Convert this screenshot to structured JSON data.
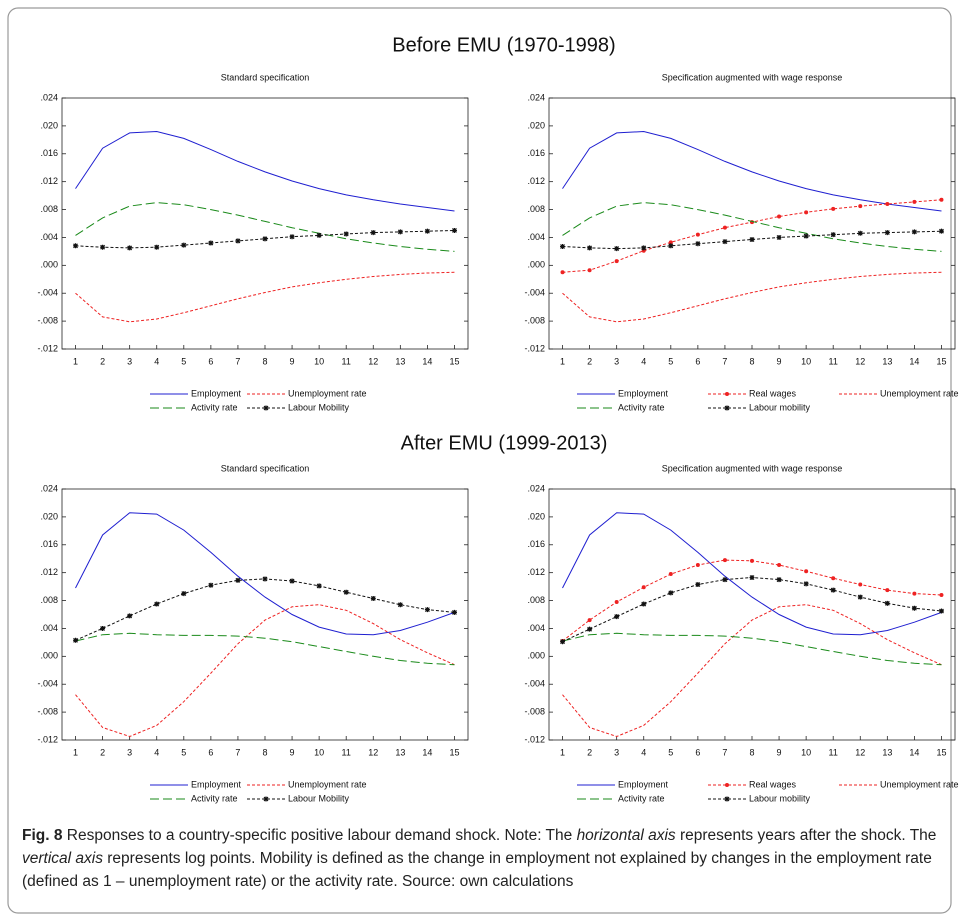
{
  "headings": [
    "Before EMU (1970-1998)",
    "After EMU (1999-2013)"
  ],
  "caption": {
    "label": "Fig. 8",
    "segments": [
      "Responses to a country-specific positive labour demand shock. Note: The ",
      "horizontal axis",
      " represents years after the shock. The ",
      "vertical axis",
      " represents log points. Mobility is defined as the change in employment not explained by changes in the employment rate (defined as 1 – unemployment rate) or the activity rate. Source: own calculations"
    ]
  },
  "chart_data": [
    {
      "type": "line",
      "title": "Standard specification",
      "categories": [
        "1",
        "2",
        "3",
        "4",
        "5",
        "6",
        "7",
        "8",
        "9",
        "10",
        "11",
        "12",
        "13",
        "14",
        "15"
      ],
      "ylim": [
        -0.012,
        0.024
      ],
      "yticks": [
        {
          "value": -0.012,
          "label": "-.012"
        },
        {
          "value": -0.008,
          "label": "-.008"
        },
        {
          "value": -0.004,
          "label": "-.004"
        },
        {
          "value": 0,
          "label": ".000"
        },
        {
          "value": 0.004,
          "label": ".004"
        },
        {
          "value": 0.008,
          "label": ".008"
        },
        {
          "value": 0.012,
          "label": ".012"
        },
        {
          "value": 0.016,
          "label": ".016"
        },
        {
          "value": 0.02,
          "label": ".020"
        },
        {
          "value": 0.024,
          "label": ".024"
        }
      ],
      "series": [
        {
          "name": "Employment",
          "color": "#1f1fd0",
          "dash": "solid",
          "marker": "none",
          "values": [
            0.011,
            0.0168,
            0.019,
            0.0192,
            0.0182,
            0.0166,
            0.0149,
            0.0134,
            0.0121,
            0.011,
            0.0101,
            0.0094,
            0.0088,
            0.0083,
            0.0078
          ]
        },
        {
          "name": "Unemployment rate",
          "color": "#ee2222",
          "dash": "short",
          "marker": "none",
          "values": [
            -0.004,
            -0.0074,
            -0.0081,
            -0.0077,
            -0.0068,
            -0.0058,
            -0.0048,
            -0.0039,
            -0.0031,
            -0.0025,
            -0.002,
            -0.0016,
            -0.0013,
            -0.0011,
            -0.001
          ]
        },
        {
          "name": "Activity rate",
          "color": "#1a8a1a",
          "dash": "long",
          "marker": "none",
          "values": [
            0.0043,
            0.0068,
            0.0085,
            0.009,
            0.0087,
            0.008,
            0.0072,
            0.0063,
            0.0054,
            0.0046,
            0.0038,
            0.0032,
            0.0027,
            0.0023,
            0.002
          ]
        },
        {
          "name": "Labour Mobility",
          "color": "#111111",
          "dash": "short",
          "marker": "star",
          "values": [
            0.0028,
            0.0026,
            0.0025,
            0.0026,
            0.0029,
            0.0032,
            0.0035,
            0.0038,
            0.0041,
            0.0043,
            0.0045,
            0.0047,
            0.0048,
            0.0049,
            0.005
          ]
        }
      ]
    },
    {
      "type": "line",
      "title": "Specification augmented with wage response",
      "categories": [
        "1",
        "2",
        "3",
        "4",
        "5",
        "6",
        "7",
        "8",
        "9",
        "10",
        "11",
        "12",
        "13",
        "14",
        "15"
      ],
      "ylim": [
        -0.012,
        0.024
      ],
      "yticks": [
        {
          "value": -0.012,
          "label": "-.012"
        },
        {
          "value": -0.008,
          "label": "-.008"
        },
        {
          "value": -0.004,
          "label": "-.004"
        },
        {
          "value": 0,
          "label": ".000"
        },
        {
          "value": 0.004,
          "label": ".004"
        },
        {
          "value": 0.008,
          "label": ".008"
        },
        {
          "value": 0.012,
          "label": ".012"
        },
        {
          "value": 0.016,
          "label": ".016"
        },
        {
          "value": 0.02,
          "label": ".020"
        },
        {
          "value": 0.024,
          "label": ".024"
        }
      ],
      "series": [
        {
          "name": "Employment",
          "color": "#1f1fd0",
          "dash": "solid",
          "marker": "none",
          "values": [
            0.011,
            0.0168,
            0.019,
            0.0192,
            0.0182,
            0.0166,
            0.0149,
            0.0134,
            0.0121,
            0.011,
            0.0101,
            0.0094,
            0.0088,
            0.0083,
            0.0078
          ]
        },
        {
          "name": "Real wages",
          "color": "#ee2222",
          "dash": "short",
          "marker": "dot",
          "values": [
            -0.001,
            -0.0007,
            0.0006,
            0.0021,
            0.0033,
            0.0044,
            0.0054,
            0.0062,
            0.007,
            0.0076,
            0.0081,
            0.0085,
            0.0088,
            0.0091,
            0.0094
          ]
        },
        {
          "name": "Unemployment rate",
          "color": "#ee2222",
          "dash": "short",
          "marker": "none",
          "values": [
            -0.004,
            -0.0074,
            -0.0081,
            -0.0077,
            -0.0068,
            -0.0058,
            -0.0048,
            -0.0039,
            -0.0031,
            -0.0025,
            -0.002,
            -0.0016,
            -0.0013,
            -0.0011,
            -0.001
          ]
        },
        {
          "name": "Activity rate",
          "color": "#1a8a1a",
          "dash": "long",
          "marker": "none",
          "values": [
            0.0043,
            0.0068,
            0.0085,
            0.009,
            0.0087,
            0.008,
            0.0072,
            0.0063,
            0.0054,
            0.0046,
            0.0038,
            0.0032,
            0.0027,
            0.0023,
            0.002
          ]
        },
        {
          "name": "Labour mobility",
          "color": "#111111",
          "dash": "short",
          "marker": "star",
          "values": [
            0.0027,
            0.0025,
            0.0024,
            0.0025,
            0.0028,
            0.0031,
            0.0034,
            0.0037,
            0.004,
            0.0042,
            0.0044,
            0.0046,
            0.0047,
            0.0048,
            0.0049
          ]
        }
      ]
    },
    {
      "type": "line",
      "title": "Standard specification",
      "categories": [
        "1",
        "2",
        "3",
        "4",
        "5",
        "6",
        "7",
        "8",
        "9",
        "10",
        "11",
        "12",
        "13",
        "14",
        "15"
      ],
      "ylim": [
        -0.012,
        0.024
      ],
      "yticks": [
        {
          "value": -0.012,
          "label": "-.012"
        },
        {
          "value": -0.008,
          "label": "-.008"
        },
        {
          "value": -0.004,
          "label": "-.004"
        },
        {
          "value": 0,
          "label": ".000"
        },
        {
          "value": 0.004,
          "label": ".004"
        },
        {
          "value": 0.008,
          "label": ".008"
        },
        {
          "value": 0.012,
          "label": ".012"
        },
        {
          "value": 0.016,
          "label": ".016"
        },
        {
          "value": 0.02,
          "label": ".020"
        },
        {
          "value": 0.024,
          "label": ".024"
        }
      ],
      "series": [
        {
          "name": "Employment",
          "color": "#1f1fd0",
          "dash": "solid",
          "marker": "none",
          "values": [
            0.0098,
            0.0174,
            0.0206,
            0.0204,
            0.0181,
            0.0149,
            0.0115,
            0.0085,
            0.006,
            0.0042,
            0.0032,
            0.0031,
            0.0037,
            0.0049,
            0.0063
          ]
        },
        {
          "name": "Unemployment rate",
          "color": "#ee2222",
          "dash": "short",
          "marker": "none",
          "values": [
            -0.0055,
            -0.0102,
            -0.0115,
            -0.0099,
            -0.0065,
            -0.0024,
            0.0018,
            0.0052,
            0.0071,
            0.0074,
            0.0066,
            0.0047,
            0.0024,
            0.0005,
            -0.0012
          ]
        },
        {
          "name": "Activity rate",
          "color": "#1a8a1a",
          "dash": "long",
          "marker": "none",
          "values": [
            0.0022,
            0.0031,
            0.0033,
            0.0031,
            0.003,
            0.003,
            0.0029,
            0.0026,
            0.0021,
            0.0014,
            0.0007,
            0,
            -0.0006,
            -0.001,
            -0.0012
          ]
        },
        {
          "name": "Labour Mobility",
          "color": "#111111",
          "dash": "short",
          "marker": "star",
          "values": [
            0.0023,
            0.004,
            0.0058,
            0.0075,
            0.009,
            0.0102,
            0.0109,
            0.0111,
            0.0108,
            0.0101,
            0.0092,
            0.0083,
            0.0074,
            0.0067,
            0.0063
          ]
        }
      ]
    },
    {
      "type": "line",
      "title": "Specification augmented with wage response",
      "categories": [
        "1",
        "2",
        "3",
        "4",
        "5",
        "6",
        "7",
        "8",
        "9",
        "10",
        "11",
        "12",
        "13",
        "14",
        "15"
      ],
      "ylim": [
        -0.012,
        0.024
      ],
      "yticks": [
        {
          "value": -0.012,
          "label": "-.012"
        },
        {
          "value": -0.008,
          "label": "-.008"
        },
        {
          "value": -0.004,
          "label": "-.004"
        },
        {
          "value": 0,
          "label": ".000"
        },
        {
          "value": 0.004,
          "label": ".004"
        },
        {
          "value": 0.008,
          "label": ".008"
        },
        {
          "value": 0.012,
          "label": ".012"
        },
        {
          "value": 0.016,
          "label": ".016"
        },
        {
          "value": 0.02,
          "label": ".020"
        },
        {
          "value": 0.024,
          "label": ".024"
        }
      ],
      "series": [
        {
          "name": "Employment",
          "color": "#1f1fd0",
          "dash": "solid",
          "marker": "none",
          "values": [
            0.0098,
            0.0174,
            0.0206,
            0.0204,
            0.0181,
            0.0149,
            0.0115,
            0.0085,
            0.006,
            0.0042,
            0.0032,
            0.0031,
            0.0037,
            0.0049,
            0.0063
          ]
        },
        {
          "name": "Real wages",
          "color": "#ee2222",
          "dash": "short",
          "marker": "dot",
          "values": [
            0.0022,
            0.0052,
            0.0078,
            0.0099,
            0.0118,
            0.0131,
            0.0138,
            0.0137,
            0.0131,
            0.0122,
            0.0112,
            0.0103,
            0.0095,
            0.009,
            0.0088
          ]
        },
        {
          "name": "Unemployment rate",
          "color": "#ee2222",
          "dash": "short",
          "marker": "none",
          "values": [
            -0.0055,
            -0.0102,
            -0.0115,
            -0.0099,
            -0.0065,
            -0.0024,
            0.0018,
            0.0052,
            0.0071,
            0.0074,
            0.0066,
            0.0047,
            0.0024,
            0.0005,
            -0.0012
          ]
        },
        {
          "name": "Activity rate",
          "color": "#1a8a1a",
          "dash": "long",
          "marker": "none",
          "values": [
            0.0022,
            0.0031,
            0.0033,
            0.0031,
            0.003,
            0.003,
            0.0029,
            0.0026,
            0.0021,
            0.0014,
            0.0007,
            0,
            -0.0006,
            -0.001,
            -0.0012
          ]
        },
        {
          "name": "Labour mobility",
          "color": "#111111",
          "dash": "short",
          "marker": "star",
          "values": [
            0.0021,
            0.0039,
            0.0057,
            0.0075,
            0.0091,
            0.0103,
            0.011,
            0.0113,
            0.011,
            0.0104,
            0.0095,
            0.0085,
            0.0076,
            0.0069,
            0.0065
          ]
        }
      ]
    }
  ]
}
